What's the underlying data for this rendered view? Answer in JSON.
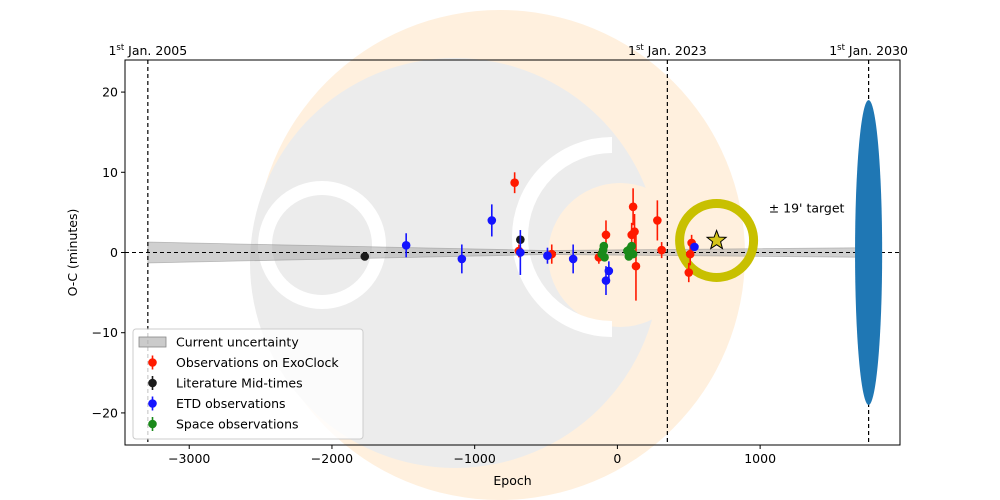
{
  "chart_data": {
    "type": "scatter",
    "xlabel": "Epoch",
    "ylabel": "O-C (minutes)",
    "xlim": [
      -3450,
      1980
    ],
    "ylim": [
      -24,
      24
    ],
    "x_ticks": [
      -3000,
      -2000,
      -1000,
      0,
      1000
    ],
    "y_ticks": [
      -20,
      -10,
      0,
      10,
      20
    ],
    "colors": {
      "exoclock": "#ff1a00",
      "literature": "#1a1a1a",
      "etd": "#1414ff",
      "space": "#1a8a1a",
      "uncertainty": "#a9a9a9",
      "future_ellipse": "#1f77b4",
      "target_ring": "#c8c000",
      "star": "#d4c41a",
      "logo_bg": "#fff0de",
      "logo_grey": "#ececec"
    },
    "uncertainty_band": {
      "label": "Current uncertainty",
      "x": [
        -3290,
        -500,
        1760
      ],
      "half_width": [
        1.3,
        0.25,
        0.6
      ]
    },
    "date_markers": [
      {
        "sup": "st",
        "pre": "1",
        "post": " Jan. 2005",
        "x": -3290
      },
      {
        "sup": "st",
        "pre": "1",
        "post": " Jan. 2023",
        "x": 350
      },
      {
        "sup": "st",
        "pre": "1",
        "post": " Jan. 2030",
        "x": 1760
      }
    ],
    "future_ellipse": {
      "x": 1760,
      "half_height": 19,
      "half_width_epoch": 95
    },
    "target": {
      "label": "± 19' target",
      "x": 695,
      "y": 1.5,
      "label_x": 1060,
      "label_y": 5.5
    },
    "series": [
      {
        "name": "Observations on ExoClock",
        "color_key": "exoclock",
        "points": [
          {
            "x": -720,
            "y": 8.7,
            "err": 1.3
          },
          {
            "x": -690,
            "y": 0.2,
            "err": 0.8
          },
          {
            "x": -460,
            "y": -0.2,
            "err": 1.2
          },
          {
            "x": -130,
            "y": -0.6,
            "err": 0.8
          },
          {
            "x": -80,
            "y": 2.2,
            "err": 1.8
          },
          {
            "x": 100,
            "y": 2.2,
            "err": 1.5
          },
          {
            "x": 110,
            "y": 5.7,
            "err": 2.3
          },
          {
            "x": 120,
            "y": 2.6,
            "err": 2.2
          },
          {
            "x": 130,
            "y": -1.7,
            "err": 4.3
          },
          {
            "x": 280,
            "y": 4.0,
            "err": 2.5
          },
          {
            "x": 310,
            "y": 0.3,
            "err": 1.0
          },
          {
            "x": 510,
            "y": -0.2,
            "err": 1.4
          },
          {
            "x": 520,
            "y": 1.2,
            "err": 1.0
          },
          {
            "x": 500,
            "y": -2.5,
            "err": 1.2
          }
        ]
      },
      {
        "name": "Literature Mid-times",
        "color_key": "literature",
        "points": [
          {
            "x": -1770,
            "y": -0.5,
            "err": 0.3
          },
          {
            "x": -680,
            "y": 1.6,
            "err": 0.4
          }
        ]
      },
      {
        "name": "ETD observations",
        "color_key": "etd",
        "points": [
          {
            "x": -1480,
            "y": 0.9,
            "err": 1.5
          },
          {
            "x": -1090,
            "y": -0.8,
            "err": 1.8
          },
          {
            "x": -880,
            "y": 4.0,
            "err": 2.0
          },
          {
            "x": -680,
            "y": 0.0,
            "err": 2.8
          },
          {
            "x": -490,
            "y": -0.4,
            "err": 1.0
          },
          {
            "x": -310,
            "y": -0.8,
            "err": 1.8
          },
          {
            "x": -80,
            "y": -3.5,
            "err": 1.8
          },
          {
            "x": -60,
            "y": -2.3,
            "err": 1.2
          },
          {
            "x": 540,
            "y": 0.7,
            "err": 0.4
          }
        ]
      },
      {
        "name": "Space observations",
        "color_key": "space",
        "points": [
          {
            "x": -110,
            "y": -0.2,
            "err": 0.4
          },
          {
            "x": -100,
            "y": 0.3,
            "err": 0.5
          },
          {
            "x": -95,
            "y": 0.8,
            "err": 0.4
          },
          {
            "x": -90,
            "y": -0.6,
            "err": 0.4
          },
          {
            "x": 70,
            "y": 0.2,
            "err": 0.3
          },
          {
            "x": 80,
            "y": -0.5,
            "err": 0.4
          },
          {
            "x": 90,
            "y": 0.5,
            "err": 0.3
          },
          {
            "x": 100,
            "y": 0.8,
            "err": 0.3
          },
          {
            "x": 110,
            "y": -0.2,
            "err": 0.3
          }
        ]
      }
    ],
    "legend_position": "lower-left"
  }
}
